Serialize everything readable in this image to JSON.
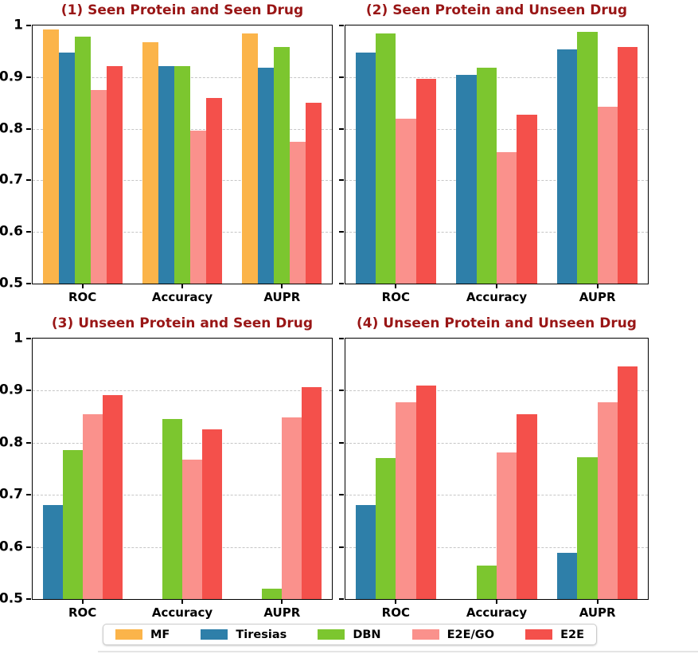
{
  "figure": {
    "background": "#ffffff",
    "title_color": "#991616",
    "grid_color": "#c6c6c6",
    "axis_color": "#000000"
  },
  "legend": {
    "items": [
      {
        "label": "MF",
        "color": "#FBB44A"
      },
      {
        "label": "Tiresias",
        "color": "#2E7FA9"
      },
      {
        "label": "DBN",
        "color": "#7CC62F"
      },
      {
        "label": "E2E/GO",
        "color": "#FA918C"
      },
      {
        "label": "E2E",
        "color": "#F4504B"
      }
    ]
  },
  "chart_data": [
    {
      "type": "bar",
      "title": "(1) Seen Protein and Seen Drug",
      "categories": [
        "ROC",
        "Accuracy",
        "AUPR"
      ],
      "ylim": [
        0.5,
        1.0
      ],
      "ytick_labels": [
        "1",
        "0.9",
        "0.8",
        "0.7",
        "0.6",
        "0.5"
      ],
      "ytick_values": [
        1.0,
        0.9,
        0.8,
        0.7,
        0.6,
        0.5
      ],
      "grid_values": [
        0.9,
        0.8,
        0.7,
        0.6
      ],
      "show_ytick_labels": true,
      "legend_position": "bottom-outside",
      "series": [
        {
          "name": "MF",
          "values": [
            0.993,
            0.968,
            0.985
          ]
        },
        {
          "name": "Tiresias",
          "values": [
            0.948,
            0.921,
            0.919
          ]
        },
        {
          "name": "DBN",
          "values": [
            0.978,
            0.921,
            0.959
          ]
        },
        {
          "name": "E2E/GO",
          "values": [
            0.875,
            0.796,
            0.775
          ]
        },
        {
          "name": "E2E",
          "values": [
            0.921,
            0.86,
            0.851
          ]
        }
      ]
    },
    {
      "type": "bar",
      "title": "(2) Seen Protein and Unseen Drug",
      "categories": [
        "ROC",
        "Accuracy",
        "AUPR"
      ],
      "ylim": [
        0.5,
        1.0
      ],
      "ytick_labels": [
        "1",
        "0.9",
        "0.8",
        "0.7",
        "0.6",
        "0.5"
      ],
      "ytick_values": [
        1.0,
        0.9,
        0.8,
        0.7,
        0.6,
        0.5
      ],
      "grid_values": [
        0.9,
        0.8,
        0.7,
        0.6
      ],
      "show_ytick_labels": false,
      "series": [
        {
          "name": "Tiresias",
          "values": [
            0.947,
            0.905,
            0.953
          ]
        },
        {
          "name": "DBN",
          "values": [
            0.985,
            0.918,
            0.988
          ]
        },
        {
          "name": "E2E/GO",
          "values": [
            0.819,
            0.755,
            0.843
          ]
        },
        {
          "name": "E2E",
          "values": [
            0.896,
            0.827,
            0.958
          ]
        }
      ]
    },
    {
      "type": "bar",
      "title": "(3) Unseen Protein and Seen Drug",
      "categories": [
        "ROC",
        "Accuracy",
        "AUPR"
      ],
      "ylim": [
        0.5,
        1.0
      ],
      "ytick_labels": [
        "1",
        "0.9",
        "0.8",
        "0.7",
        "0.6",
        "0.5"
      ],
      "ytick_values": [
        1.0,
        0.9,
        0.8,
        0.7,
        0.6,
        0.5
      ],
      "grid_values": [
        0.9,
        0.8,
        0.7,
        0.6
      ],
      "show_ytick_labels": true,
      "series": [
        {
          "name": "Tiresias",
          "values": [
            0.68,
            null,
            null
          ]
        },
        {
          "name": "DBN",
          "values": [
            0.786,
            0.846,
            0.52
          ]
        },
        {
          "name": "E2E/GO",
          "values": [
            0.854,
            0.768,
            0.848
          ]
        },
        {
          "name": "E2E",
          "values": [
            0.891,
            0.825,
            0.906
          ]
        }
      ]
    },
    {
      "type": "bar",
      "title": "(4) Unseen Protein and Unseen Drug",
      "categories": [
        "ROC",
        "Accuracy",
        "AUPR"
      ],
      "ylim": [
        0.5,
        1.0
      ],
      "ytick_labels": [
        "1",
        "0.9",
        "0.8",
        "0.7",
        "0.6",
        "0.5"
      ],
      "ytick_values": [
        1.0,
        0.9,
        0.8,
        0.7,
        0.6,
        0.5
      ],
      "grid_values": [
        0.9,
        0.8,
        0.7,
        0.6
      ],
      "show_ytick_labels": false,
      "series": [
        {
          "name": "Tiresias",
          "values": [
            0.68,
            null,
            0.589
          ]
        },
        {
          "name": "DBN",
          "values": [
            0.77,
            0.564,
            0.772
          ]
        },
        {
          "name": "E2E/GO",
          "values": [
            0.878,
            0.781,
            0.878
          ]
        },
        {
          "name": "E2E",
          "values": [
            0.91,
            0.855,
            0.946
          ]
        }
      ]
    }
  ]
}
